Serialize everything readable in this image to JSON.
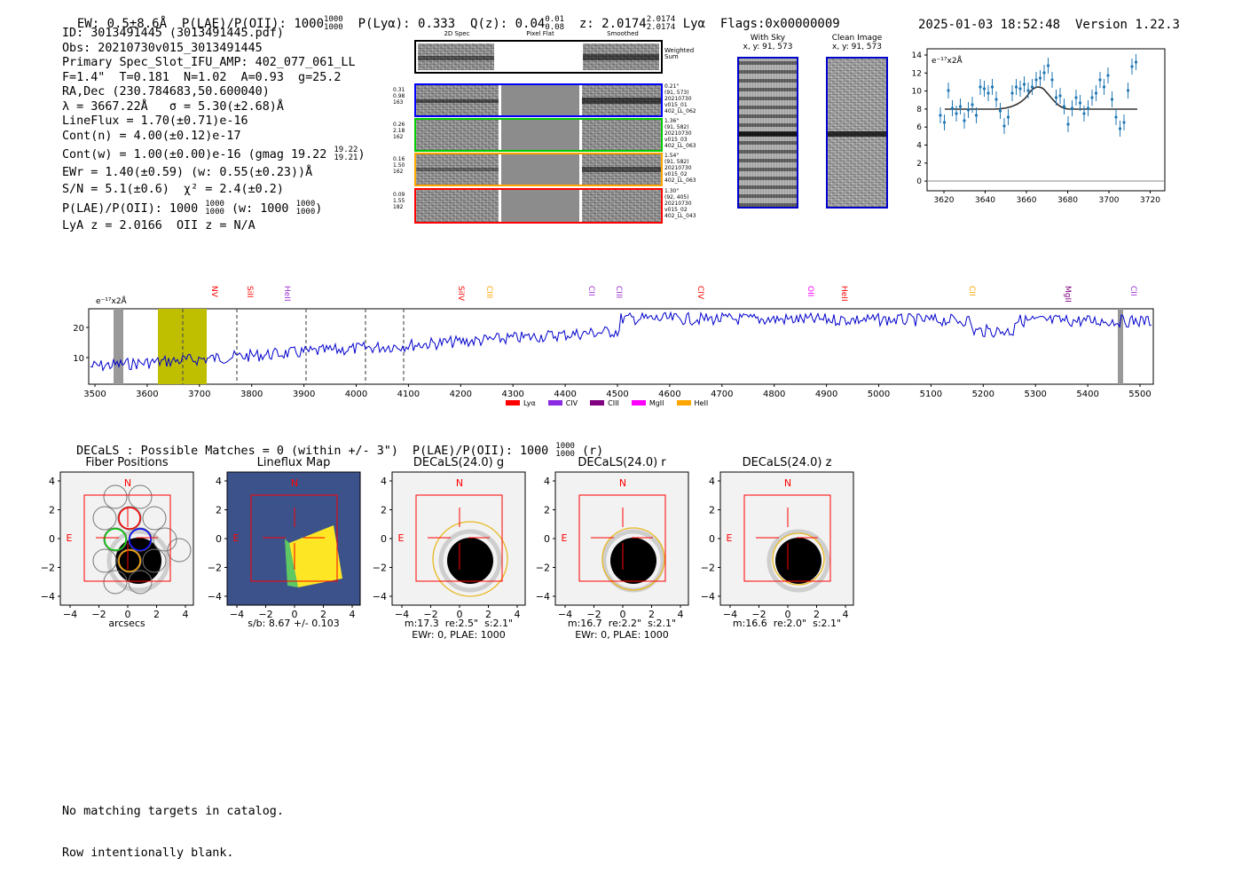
{
  "header": {
    "ew": "EW: 0.5±8.6Å",
    "plae_label": "P(LAE)/P(OII):",
    "plae_value": "1000",
    "plae_hi": "1000",
    "plae_lo": "1000",
    "plya": "P(Lyα): 0.333",
    "qz_label": "Q(z): 0.04",
    "qz_hi": "0.01",
    "qz_lo": "0.08",
    "z_label": "z: 2.0174",
    "z_hi": "2.0174",
    "z_lo": "2.0174",
    "z_line": "Lyα",
    "flags": "Flags:0x00000009",
    "datetime": "2025-01-03 18:52:48",
    "version": "Version 1.22.3"
  },
  "info": {
    "id": "ID: 3013491445 (3013491445.pdf)",
    "obs": "Obs: 20210730v015_3013491445",
    "primary": "Primary Spec_Slot_IFU_AMP: 402_077_061_LL",
    "params": "F=1.4\"  T=0.181  N=1.02  A=0.93  g=25.2",
    "radec": "RA,Dec (230.784683,50.600040)",
    "lambda": "λ = 3667.22Å   σ = 5.30(±2.68)Å",
    "lineflux": "LineFlux = 1.70(±0.71)e-16",
    "contn": "Cont(n) = 4.00(±0.12)e-17",
    "contw": "Cont(w) = 1.00(±0.00)e-16 (gmag 19.22",
    "contw_hi": "19.22",
    "contw_lo": "19.21",
    "contw_end": ")",
    "ewr": "EWr = 1.40(±0.59) (w: 0.55(±0.23))Å",
    "sn": "S/N = 5.1(±0.6)  χ² = 2.4(±0.2)",
    "plae": "P(LAE)/P(OII): 1000",
    "plae_hi": "1000",
    "plae_lo": "1000",
    "plae_w": "(w: 1000",
    "plae_w_hi": "1000",
    "plae_w_lo": "1000",
    "plae_w_end": ")",
    "lya": "LyA z = 2.0166  OII z = N/A"
  },
  "cutouts": {
    "col_titles": [
      "2D Spec",
      "Pixel Flat",
      "Smoothed"
    ],
    "weighted_label": "Weighted\nSum",
    "rows": [
      {
        "left": "0.31\n0.98\n163",
        "right": "0.21\"\n(91, 573)\n20210730\nv015_01\n402_LL_062",
        "color": "#0000ff"
      },
      {
        "left": "0.26\n2.18\n162",
        "right": "1.36\"\n(91, 582)\n20210730\nv015_03\n402_LL_063",
        "color": "#00cc00"
      },
      {
        "left": "0.16\n1.50\n162",
        "right": "1.54\"\n(91, 582)\n20210730\nv015_02\n402_LL_063",
        "color": "#ffa500"
      },
      {
        "left": "0.09\n1.55\n182",
        "right": "1.30\"\n(92, 405)\n20210730\nv015_02\n402_LL_043",
        "color": "#ff0000"
      }
    ]
  },
  "sky": {
    "with_sky_title": "With Sky",
    "with_sky_coords": "x, y: 91, 573",
    "clean_title": "Clean Image",
    "clean_coords": "x, y: 91, 573"
  },
  "zoom_plot": {
    "unit_label": "e⁻¹⁷x2Å",
    "yticks": [
      "14",
      "12",
      "10",
      "8",
      "6",
      "4",
      "2",
      "0"
    ],
    "xticks": [
      "3620",
      "3640",
      "3660",
      "3680",
      "3700",
      "3720"
    ]
  },
  "spectrum": {
    "unit_label": "e⁻¹⁷x2Å",
    "yticks": [
      "20",
      "10"
    ],
    "xticks": [
      "3500",
      "3600",
      "3700",
      "3800",
      "3900",
      "4000",
      "4100",
      "4200",
      "4300",
      "4400",
      "4500",
      "4600",
      "4700",
      "4800",
      "4900",
      "5000",
      "5100",
      "5200",
      "5300",
      "5400",
      "5500"
    ],
    "lines": [
      {
        "name": "NV",
        "color": "#ff0000"
      },
      {
        "name": "SiII",
        "color": "#ff0000"
      },
      {
        "name": "HeII",
        "color": "#9a32cd"
      },
      {
        "name": "SiIV",
        "color": "#ff0000"
      },
      {
        "name": "CIII",
        "color": "#ffa500"
      },
      {
        "name": "CII",
        "color": "#9a32cd"
      },
      {
        "name": "CIII",
        "color": "#9a32cd"
      },
      {
        "name": "CIV",
        "color": "#ff0000"
      },
      {
        "name": "OII",
        "color": "#ff00ff"
      },
      {
        "name": "HeII",
        "color": "#ff0000"
      },
      {
        "name": "CII",
        "color": "#ffa500"
      },
      {
        "name": "MgII",
        "color": "#800080"
      },
      {
        "name": "CII",
        "color": "#9a32cd"
      }
    ],
    "legend": [
      {
        "name": "Lyα",
        "color": "#ff0000"
      },
      {
        "name": "CIV",
        "color": "#8a2be2"
      },
      {
        "name": "CIII",
        "color": "#800080"
      },
      {
        "name": "MgII",
        "color": "#ff00ff"
      },
      {
        "name": "HeII",
        "color": "#ffa500"
      }
    ]
  },
  "decals": {
    "summary": "DECaLS : Possible Matches = 0 (within +/- 3\")  P(LAE)/P(OII): 1000",
    "summary_hi": "1000",
    "summary_lo": "1000",
    "summary_end": "(r)",
    "panels": [
      {
        "title": "Fiber Positions",
        "cap1": "arcsecs",
        "cap2": "",
        "n": "N",
        "e": "E"
      },
      {
        "title": "Lineflux Map",
        "cap1": "s/b: 8.67 +/- 0.103",
        "cap2": "",
        "n": "N",
        "e": "E"
      },
      {
        "title": "DECaLS(24.0) g",
        "cap1": "m:17.3  re:2.5\"  s:2.1\"",
        "cap2": "EWr: 0, PLAE: 1000",
        "n": "N",
        "e": "E"
      },
      {
        "title": "DECaLS(24.0) r",
        "cap1": "m:16.7  re:2.2\"  s:2.1\"",
        "cap2": "EWr: 0, PLAE: 1000",
        "n": "N",
        "e": "E"
      },
      {
        "title": "DECaLS(24.0) z",
        "cap1": "m:16.6  re:2.0\"  s:2.1\"",
        "cap2": "",
        "n": "N",
        "e": "E"
      }
    ],
    "ticks": [
      "4",
      "2",
      "0",
      "−2",
      "−4"
    ],
    "xticks": [
      "−4",
      "−2",
      "0",
      "2",
      "4"
    ]
  },
  "footer": {
    "line1": "No matching targets in catalog.",
    "line2": "Row intentionally blank."
  }
}
